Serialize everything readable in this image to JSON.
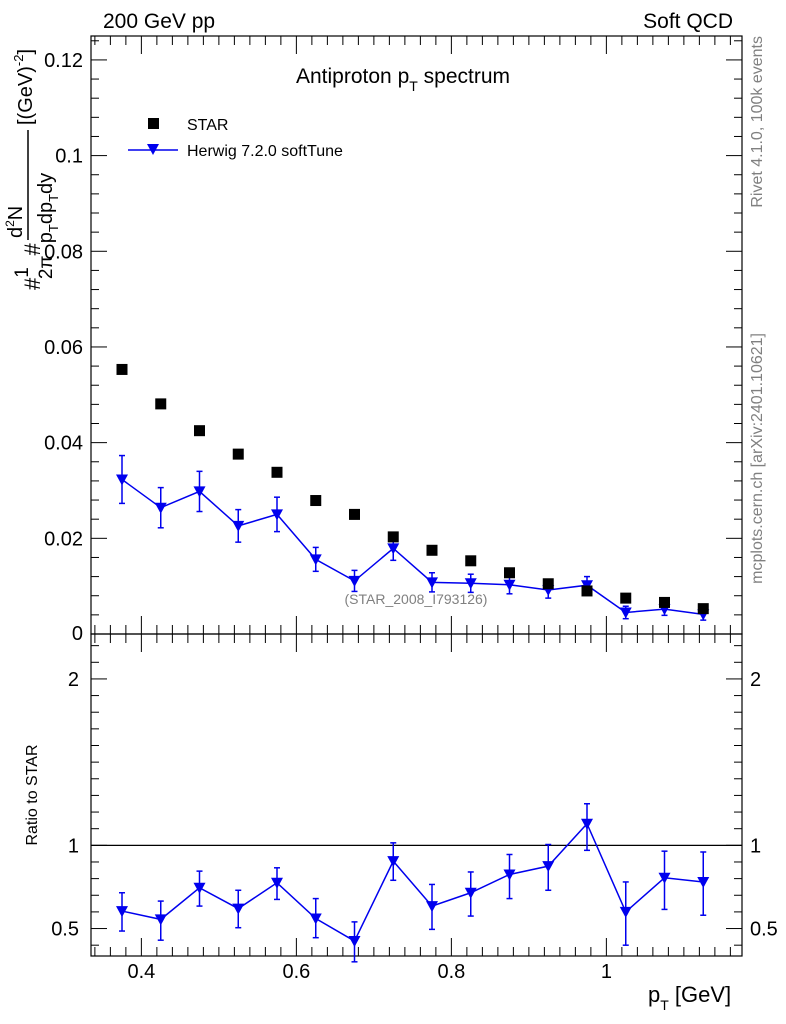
{
  "header": {
    "left": "200 GeV pp",
    "right": "Soft QCD"
  },
  "side_text": {
    "top": "Rivet 4.1.0,  100k events",
    "bottom": "mcplots.cern.ch [arXiv:2401.10621]"
  },
  "chart_data": [
    {
      "type": "scatter",
      "panel": "main",
      "title_main": "Antiproton p",
      "title_sub": "T",
      "title_end": " spectrum",
      "ylabel": "#frac{1}{2#pi} #frac{d²N}{p_T dp_T dy} [(GeV)⁻²]",
      "ylabel_parts": {
        "a": "#",
        "b": "1",
        "c": "2π",
        "d": "#",
        "e": "p",
        "f": "T",
        "g": "dp",
        "h": "T",
        "i": "dy",
        "j": "d",
        "k": "2",
        "l": "N",
        "m": "[(GeV)",
        "n": "-2",
        "o": "]"
      },
      "xlim": [
        0.335,
        1.175
      ],
      "ylim": [
        0,
        0.125
      ],
      "yticks": [
        0.02,
        0.04,
        0.06,
        0.08,
        0.1,
        0.12
      ],
      "ytick_labels": [
        "0.02",
        "0.04",
        "0.06",
        "0.08",
        "0.1",
        "0.12"
      ],
      "y_zero_label": "0",
      "watermark": "(STAR_2008_I793126)",
      "legend": [
        {
          "name": "STAR",
          "marker": "square",
          "color": "#000000"
        },
        {
          "name": "Herwig 7.2.0 softTune",
          "marker": "triangle-down",
          "color": "#0000ee"
        }
      ],
      "series": [
        {
          "name": "STAR",
          "x": [
            0.375,
            0.425,
            0.475,
            0.525,
            0.575,
            0.625,
            0.675,
            0.725,
            0.775,
            0.825,
            0.875,
            0.925,
            0.975,
            1.025,
            1.075,
            1.125
          ],
          "y": [
            0.0553,
            0.0481,
            0.0425,
            0.0376,
            0.0338,
            0.0279,
            0.025,
            0.0203,
            0.0175,
            0.0153,
            0.0128,
            0.0105,
            0.009,
            0.0075,
            0.0066,
            0.0053
          ]
        },
        {
          "name": "Herwig 7.2.0 softTune",
          "x": [
            0.375,
            0.425,
            0.475,
            0.525,
            0.575,
            0.625,
            0.675,
            0.725,
            0.775,
            0.825,
            0.875,
            0.925,
            0.975,
            1.025,
            1.075,
            1.125
          ],
          "y": [
            0.0323,
            0.0264,
            0.0298,
            0.0226,
            0.025,
            0.0156,
            0.0111,
            0.0179,
            0.0108,
            0.0106,
            0.0103,
            0.0092,
            0.0102,
            0.0045,
            0.0052,
            0.0041
          ],
          "yerr": [
            0.005,
            0.0042,
            0.0042,
            0.0034,
            0.0036,
            0.0025,
            0.0022,
            0.0025,
            0.002,
            0.0019,
            0.0019,
            0.0017,
            0.0018,
            0.0013,
            0.0013,
            0.0012
          ]
        }
      ]
    },
    {
      "type": "line",
      "panel": "ratio",
      "ylabel": "Ratio to STAR",
      "xlabel_main": "p",
      "xlabel_sub": "T",
      "xlabel_end": " [GeV]",
      "xlim": [
        0.335,
        1.175
      ],
      "ylim": [
        0.335,
        2.27
      ],
      "xticks": [
        0.4,
        0.6,
        0.8,
        1.0
      ],
      "xtick_labels": [
        "0.4",
        "0.6",
        "0.8",
        "1"
      ],
      "yticks": [
        0.5,
        1,
        2
      ],
      "ytick_labels": [
        "0.5",
        "1",
        "2"
      ],
      "reference_line": 1,
      "series": [
        {
          "name": "Herwig 7.2.0 softTune / STAR",
          "x": [
            0.375,
            0.425,
            0.475,
            0.525,
            0.575,
            0.625,
            0.675,
            0.725,
            0.775,
            0.825,
            0.875,
            0.925,
            0.975,
            1.025,
            1.075,
            1.125
          ],
          "y": [
            0.605,
            0.555,
            0.745,
            0.62,
            0.775,
            0.56,
            0.425,
            0.905,
            0.635,
            0.715,
            0.825,
            0.875,
            1.13,
            0.6,
            0.805,
            0.78
          ],
          "err_lo": [
            0.12,
            0.125,
            0.11,
            0.115,
            0.1,
            0.115,
            0.125,
            0.115,
            0.14,
            0.14,
            0.145,
            0.145,
            0.16,
            0.2,
            0.19,
            0.2
          ],
          "err_hi": [
            0.11,
            0.11,
            0.1,
            0.11,
            0.09,
            0.12,
            0.115,
            0.11,
            0.13,
            0.125,
            0.12,
            0.13,
            0.12,
            0.18,
            0.16,
            0.18
          ]
        }
      ]
    }
  ]
}
